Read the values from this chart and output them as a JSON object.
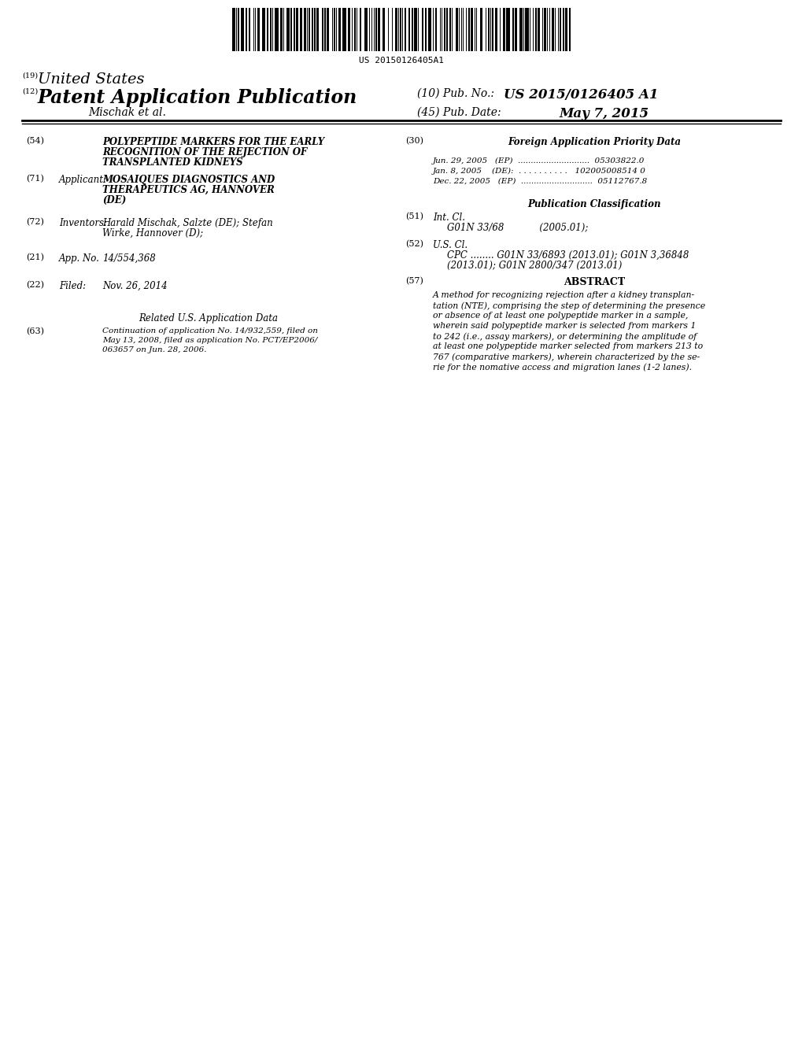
{
  "background_color": "#ffffff",
  "barcode_text": "US 20150126405A1",
  "header_line1_num": "(19)",
  "header_line1_text": "United States",
  "header_line2_num": "(12)",
  "header_line2_text": "Patent Application Publication",
  "header_right_num": "(10) Pub. No.:",
  "header_right_pubno": "US 2015/0126405 A1",
  "header_author": "Mischak et al.",
  "header_date_num": "(45) Pub. Date:",
  "header_date": "May 7, 2015",
  "section54_label": "(54)",
  "section54_line1": "POLYPEPTIDE MARKERS FOR THE EARLY",
  "section54_line2": "RECOGNITION OF THE REJECTION OF",
  "section54_line3": "TRANSPLANTED KIDNEYS",
  "section71_label": "(71)",
  "section71_keyword": "Applicant:",
  "section71_line1": "MOSAIQUES DIAGNOSTICS AND",
  "section71_line2": "THERAPEUTICS AG, HANNOVER",
  "section71_line3": "(DE)",
  "section72_label": "(72)",
  "section72_keyword": "Inventors:",
  "section72_line1": "Harald Mischak, Salzte (DE); Stefan",
  "section72_line2": "Wirke, Hannover (D);",
  "section21_label": "(21)",
  "section21_keyword": "App. No.",
  "section21_value": "14/554,368",
  "section22_label": "(22)",
  "section22_keyword": "Filed:",
  "section22_value": "Nov. 26, 2014",
  "related_header": "Related U.S. Application Data",
  "section63_label": "(63)",
  "section63_line1": "Continuation of application No. 14/932,559, filed on",
  "section63_line2": "May 13, 2008, filed as application No. PCT/EP2006/",
  "section63_line3": "063657 on Jun. 28, 2006.",
  "section30_label": "(30)",
  "section30_header": "Foreign Application Priority Data",
  "foreign_row1": "Jun. 29, 2005   (EP)  ............................  05303822.0",
  "foreign_row2": "Jan. 8, 2005    (DE):  . . . . . . . . . .   102005008514 0",
  "foreign_row3": "Dec. 22, 2005   (EP)  ............................  05112767.8",
  "pub_class_header": "Publication Classification",
  "section51_label": "(51)",
  "section51_line1": "Int. Cl.",
  "section51_line2": "G01N 33/68            (2005.01);",
  "section52_label": "(52)",
  "section52_line1": "U.S. Cl.",
  "section52_line2": "CPC ........ G01N 33/6893 (2013.01); G01N 3,36848",
  "section52_line3": "(2013.01); G01N 2800/347 (2013.01)",
  "section57_label": "(57)",
  "section57_header": "ABSTRACT",
  "abstract_line1": "A method for recognizing rejection after a kidney transplan-",
  "abstract_line2": "tation (NTE), comprising the step of determining the presence",
  "abstract_line3": "or absence of at least one polypeptide marker in a sample,",
  "abstract_line4": "wherein said polypeptide marker is selected from markers 1",
  "abstract_line5": "to 242 (i.e., assay markers), or determining the amplitude of",
  "abstract_line6": "at least one polypeptide marker selected from markers 213 to",
  "abstract_line7": "767 (comparative markers), wherein characterized by the se-",
  "abstract_line8": "rie for the nomative access and migration lanes (1-2 lanes)."
}
